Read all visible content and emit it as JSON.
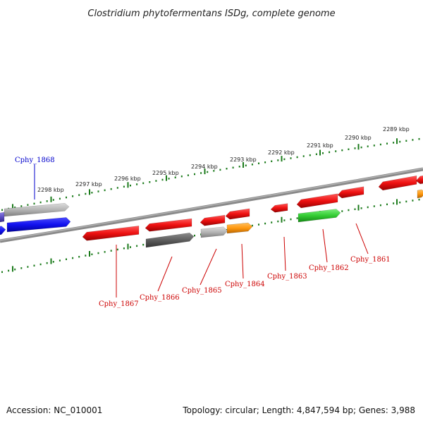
{
  "title": "Clostridium phytofermentans ISDg, complete genome",
  "footer": {
    "accession": "Accession: NC_010001",
    "summary": "Topology: circular; Length: 4,847,594 bp; Genes: 3,988"
  },
  "colors": {
    "backbone": "#7a7a7a",
    "ticks": "#1a7a1a",
    "gene_red": "#ee1111",
    "gene_blue": "#1111ee",
    "gene_lavender": "#6a5acd",
    "gene_gray": "#b4b4b4",
    "gene_dark_gray": "#616161",
    "gene_orange": "#ff9910",
    "gene_green": "#33cc33",
    "label_red": "#cc0000",
    "label_blue": "#0000cc"
  },
  "scale_labels": [
    "2298 kbp",
    "2297 kbp",
    "2296 kbp",
    "2295 kbp",
    "2294 kbp",
    "2293 kbp",
    "2292 kbp",
    "2291 kbp",
    "2290 kbp",
    "2289 kbp"
  ],
  "gene_labels": [
    {
      "text": "Cphy_1868",
      "color": "blue"
    },
    {
      "text": "Cphy_1867",
      "color": "red"
    },
    {
      "text": "Cphy_1866",
      "color": "red"
    },
    {
      "text": "Cphy_1865",
      "color": "red"
    },
    {
      "text": "Cphy_1864",
      "color": "red"
    },
    {
      "text": "Cphy_1863",
      "color": "red"
    },
    {
      "text": "Cphy_1862",
      "color": "red"
    },
    {
      "text": "Cphy_1861",
      "color": "red"
    }
  ]
}
